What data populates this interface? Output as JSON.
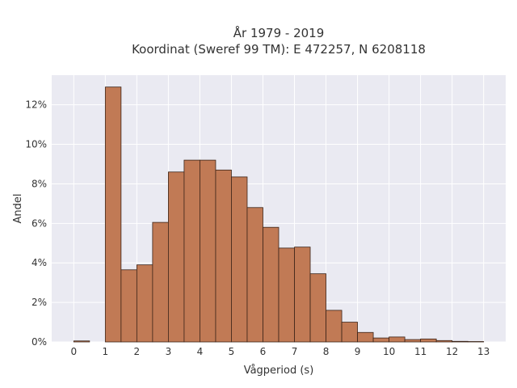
{
  "chart_data": {
    "type": "bar",
    "title": "År 1979 - 2019",
    "subtitle": "Koordinat (Sweref 99 TM): E 472257, N 6208118",
    "xlabel": "Vågperiod (s)",
    "ylabel": "Andel",
    "xlim": [
      -0.7,
      13.7
    ],
    "ylim": [
      0,
      13.5
    ],
    "x_ticks": [
      0,
      1,
      2,
      3,
      4,
      5,
      6,
      7,
      8,
      9,
      10,
      11,
      12,
      13
    ],
    "y_ticks": [
      0,
      2,
      4,
      6,
      8,
      10,
      12
    ],
    "y_tick_labels": [
      "0%",
      "2%",
      "4%",
      "6%",
      "8%",
      "10%",
      "12%"
    ],
    "bin_width": 0.5,
    "bins_left": [
      0,
      0.5,
      1.0,
      1.5,
      2.0,
      2.5,
      3.0,
      3.5,
      4.0,
      4.5,
      5.0,
      5.5,
      6.0,
      6.5,
      7.0,
      7.5,
      8.0,
      8.5,
      9.0,
      9.5,
      10.0,
      10.5,
      11.0,
      11.5,
      12.0,
      12.5
    ],
    "values": [
      0.05,
      0,
      12.9,
      3.65,
      3.9,
      6.05,
      8.6,
      9.2,
      9.2,
      8.7,
      8.35,
      6.8,
      5.8,
      4.75,
      4.8,
      3.45,
      1.6,
      1.0,
      0.48,
      0.2,
      0.25,
      0.12,
      0.15,
      0.07,
      0.03,
      0.02
    ],
    "bar_color": "#c17a55",
    "edge_color": "#3b2418",
    "background": "#eaeaf2",
    "grid": true
  }
}
